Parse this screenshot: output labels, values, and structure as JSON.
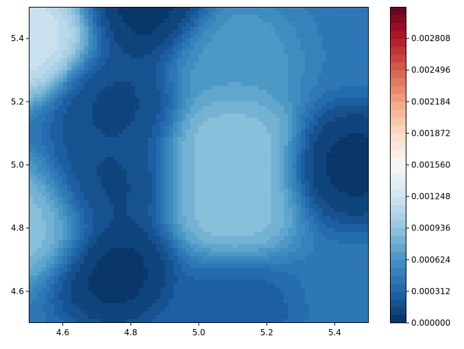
{
  "chart_data": {
    "type": "heatmap",
    "subtype": "filled-contour",
    "title": "",
    "xlabel": "",
    "ylabel": "",
    "xlim": [
      4.5,
      5.5
    ],
    "ylim": [
      4.5,
      5.5
    ],
    "x_ticks": [
      "4.6",
      "4.8",
      "5.0",
      "5.2",
      "5.4"
    ],
    "x_tick_values": [
      4.6,
      4.8,
      5.0,
      5.2,
      5.4
    ],
    "y_ticks": [
      "4.6",
      "4.8",
      "5.0",
      "5.2",
      "5.4"
    ],
    "y_tick_values": [
      4.6,
      4.8,
      5.0,
      5.2,
      5.4
    ],
    "colormap": "RdBu_r",
    "grid": false,
    "colorbar": {
      "min": 0.0,
      "max": 0.00312,
      "levels": 40,
      "ticks": [
        "0.000000",
        "0.000312",
        "0.000624",
        "0.000936",
        "0.001248",
        "0.001560",
        "0.001872",
        "0.002184",
        "0.002496",
        "0.002808"
      ],
      "tick_values": [
        0.0,
        0.000312,
        0.000624,
        0.000936,
        0.001248,
        0.00156,
        0.001872,
        0.002184,
        0.002496,
        0.002808
      ]
    },
    "field_features": [
      {
        "x": 4.5,
        "y": 5.4,
        "value": 0.0013
      },
      {
        "x": 5.1,
        "y": 5.07,
        "value": 0.00095
      },
      {
        "x": 5.1,
        "y": 4.87,
        "value": 0.00095
      },
      {
        "x": 5.1,
        "y": 5.33,
        "value": 0.0007
      },
      {
        "x": 4.5,
        "y": 4.82,
        "value": 0.00095
      },
      {
        "x": 4.75,
        "y": 5.19,
        "value": 0.00012
      },
      {
        "x": 4.72,
        "y": 4.93,
        "value": 0.00012
      },
      {
        "x": 4.75,
        "y": 4.66,
        "value": 2e-05
      },
      {
        "x": 5.46,
        "y": 5.0,
        "value": 2e-05
      },
      {
        "x": 4.85,
        "y": 5.5,
        "value": 2e-05
      },
      {
        "x": 5.1,
        "y": 4.54,
        "value": 0.00025
      }
    ]
  }
}
